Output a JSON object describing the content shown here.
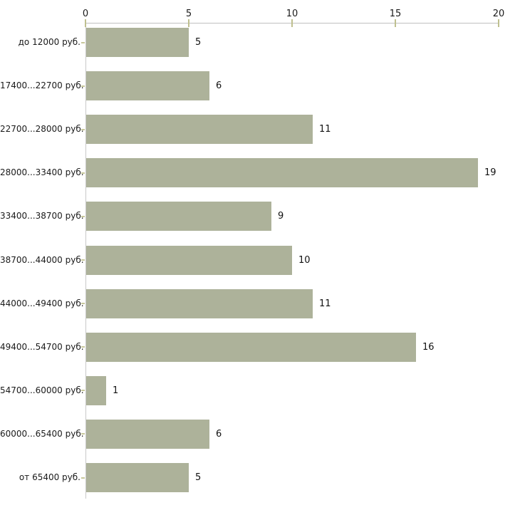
{
  "chart_data": {
    "type": "bar",
    "orientation": "horizontal",
    "title": "",
    "xlabel": "",
    "ylabel": "",
    "categories": [
      "до 12000 руб.",
      "17400...22700 руб.",
      "22700...28000 руб.",
      "28000...33400 руб.",
      "33400...38700 руб.",
      "38700...44000 руб.",
      "44000...49400 руб.",
      "49400...54700 руб.",
      "54700...60000 руб.",
      "60000...65400 руб.",
      "от 65400 руб."
    ],
    "values": [
      5,
      6,
      11,
      19,
      9,
      10,
      11,
      16,
      1,
      6,
      5
    ],
    "value_labels": [
      "5",
      "6",
      "11",
      "19",
      "9",
      "10",
      "11",
      "16",
      "1",
      "6",
      "5"
    ],
    "xlim": [
      0,
      20
    ],
    "x_ticks": [
      0,
      5,
      10,
      15,
      20
    ],
    "x_tick_labels": [
      "0",
      "5",
      "10",
      "15",
      "20"
    ],
    "grid": false,
    "legend": false,
    "colors": {
      "bar_fill": "#adb29a",
      "axis_line": "#c0c0c0",
      "tick_mark": "#bfc08f",
      "text": "#1a1a1a",
      "background": "#ffffff"
    }
  }
}
